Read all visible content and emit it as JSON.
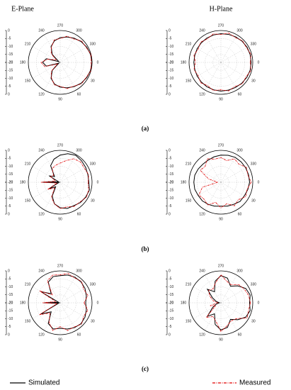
{
  "column_titles": [
    "E-Plane",
    "H-Plane"
  ],
  "captions": [
    "(a)",
    "(b)",
    "(c)"
  ],
  "legend": [
    {
      "name": "Simulated",
      "color": "#000000"
    },
    {
      "name": "Measured",
      "color": "#e00000"
    }
  ],
  "chart_data": [
    {
      "type": "polar",
      "rlim": [
        -20,
        0
      ],
      "rticks": [
        -20,
        -15,
        -10,
        -5,
        0
      ],
      "thetaticks": [
        0,
        30,
        60,
        90,
        120,
        150,
        180,
        210,
        240,
        270,
        300,
        330
      ],
      "theta": [
        0,
        15,
        30,
        45,
        60,
        75,
        90,
        105,
        120,
        135,
        150,
        165,
        180,
        195,
        210,
        225,
        240,
        255,
        270,
        285,
        300,
        315,
        330,
        345
      ],
      "series": [
        {
          "color": "#000000",
          "values": [
            0,
            -0.3,
            -0.8,
            -1.5,
            -2.5,
            -3.5,
            -4.5,
            -6,
            -8.5,
            -13,
            -19,
            -11,
            -9,
            -11,
            -19,
            -13,
            -8.5,
            -6,
            -4.5,
            -3.5,
            -2.5,
            -1.5,
            -0.8,
            -0.3
          ]
        },
        {
          "color": "#e00000",
          "values": [
            -0.5,
            0,
            -1.2,
            -1,
            -2.8,
            -3,
            -5,
            -5.5,
            -9,
            -12,
            -18,
            -10,
            -8,
            -12,
            -17,
            -12,
            -9,
            -5.5,
            -5,
            -3,
            -3,
            -1,
            -1.2,
            0
          ]
        }
      ]
    },
    {
      "type": "polar",
      "rlim": [
        -20,
        0
      ],
      "rticks": [
        -20,
        -15,
        -10,
        -5,
        0
      ],
      "thetaticks": [
        0,
        30,
        60,
        90,
        120,
        150,
        180,
        210,
        240,
        270,
        300,
        330
      ],
      "theta": [
        0,
        15,
        30,
        45,
        60,
        75,
        90,
        105,
        120,
        135,
        150,
        165,
        180,
        195,
        210,
        225,
        240,
        255,
        270,
        285,
        300,
        315,
        330,
        345
      ],
      "series": [
        {
          "color": "#000000",
          "values": [
            -1,
            -1,
            -1.2,
            -1.5,
            -1.8,
            -2,
            -2,
            -2.2,
            -2.4,
            -2.6,
            -2.8,
            -3,
            -3,
            -3,
            -2.8,
            -2.6,
            -2.4,
            -2.2,
            -2,
            -1.8,
            -1.5,
            -1.2,
            -1,
            -1
          ]
        },
        {
          "color": "#e00000",
          "values": [
            -1.5,
            -0.5,
            -1.8,
            -1,
            -2.5,
            -1.5,
            -2.8,
            -1.8,
            -3.2,
            -2,
            -3.5,
            -2.5,
            -4,
            -2.5,
            -3.5,
            -2,
            -3,
            -1.5,
            -2.5,
            -1,
            -2,
            -0.8,
            -1.5,
            -0.5
          ]
        }
      ]
    },
    {
      "type": "polar",
      "rlim": [
        -20,
        0
      ],
      "rticks": [
        -20,
        -15,
        -10,
        -5,
        0
      ],
      "thetaticks": [
        0,
        30,
        60,
        90,
        120,
        150,
        180,
        210,
        240,
        270,
        300,
        330
      ],
      "theta": [
        0,
        15,
        30,
        45,
        60,
        75,
        90,
        105,
        120,
        135,
        150,
        165,
        180,
        195,
        210,
        225,
        240,
        255,
        270,
        285,
        300,
        315,
        330,
        345
      ],
      "series": [
        {
          "color": "#000000",
          "values": [
            -2,
            -1,
            -1.5,
            -2,
            -3,
            -3,
            -4,
            -6,
            -10,
            -16,
            -12,
            -19,
            -9,
            -19,
            -12,
            -15,
            -8,
            -5,
            -3,
            -1.5,
            -0.5,
            -1,
            -1.5,
            -2
          ]
        },
        {
          "color": "#e00000",
          "values": [
            -2.5,
            -1.5,
            -1,
            -2.5,
            -2.5,
            -4,
            -3.5,
            -6,
            -9,
            -15,
            -11,
            -18,
            -8,
            -17,
            -13,
            -14,
            -10,
            -9,
            -8,
            -6,
            -3,
            -2,
            -2.5,
            -1.5
          ]
        }
      ]
    },
    {
      "type": "polar",
      "rlim": [
        -20,
        0
      ],
      "rticks": [
        -20,
        -15,
        -10,
        -5,
        0
      ],
      "thetaticks": [
        0,
        30,
        60,
        90,
        120,
        150,
        180,
        210,
        240,
        270,
        300,
        330
      ],
      "theta": [
        0,
        15,
        30,
        45,
        60,
        75,
        90,
        105,
        120,
        135,
        150,
        165,
        180,
        195,
        210,
        225,
        240,
        255,
        270,
        285,
        300,
        315,
        330,
        345
      ],
      "series": [
        {
          "color": "#000000",
          "values": [
            -2,
            -2.5,
            -3,
            -3,
            -4,
            -4.5,
            -5,
            -4.5,
            -4,
            -3.5,
            -3.5,
            -3,
            -3,
            -3,
            -3.5,
            -4,
            -4,
            -3.5,
            -3,
            -2.5,
            -2,
            -2,
            -2,
            -2
          ]
        },
        {
          "color": "#e00000",
          "values": [
            -1,
            -3,
            -2,
            -4.5,
            -3,
            -6,
            -4,
            -7,
            -3.5,
            -5,
            -4,
            -8,
            -18,
            -12,
            -5,
            -6,
            -3,
            -5,
            -4.5,
            -6,
            -3,
            -4,
            -1.5,
            -2.5
          ]
        }
      ]
    },
    {
      "type": "polar",
      "rlim": [
        -20,
        0
      ],
      "rticks": [
        -20,
        -15,
        -10,
        -5,
        0
      ],
      "thetaticks": [
        0,
        30,
        60,
        90,
        120,
        150,
        180,
        210,
        240,
        270,
        300,
        330
      ],
      "theta": [
        0,
        15,
        30,
        45,
        60,
        75,
        90,
        105,
        120,
        135,
        150,
        165,
        180,
        195,
        210,
        225,
        240,
        255,
        270,
        285,
        300,
        315,
        330,
        345
      ],
      "series": [
        {
          "color": "#000000",
          "values": [
            -4,
            -3,
            -2,
            -1.5,
            -2,
            -3,
            -4,
            -3,
            -5,
            -12,
            -6,
            -19,
            -10,
            -19,
            -6,
            -12,
            -5,
            -3,
            -3,
            -2,
            -1.5,
            -1.5,
            -2,
            -3
          ]
        },
        {
          "color": "#e00000",
          "values": [
            -5,
            -2,
            -3,
            -1,
            -2.5,
            -2,
            -5,
            -2,
            -6,
            -11,
            -5,
            -18,
            -9,
            -17,
            -5,
            -13,
            -4,
            -2,
            -2.5,
            -1,
            -2,
            -1,
            -3,
            -2
          ]
        }
      ]
    },
    {
      "type": "polar",
      "rlim": [
        -20,
        0
      ],
      "rticks": [
        -20,
        -15,
        -10,
        -5,
        0
      ],
      "thetaticks": [
        0,
        30,
        60,
        90,
        120,
        150,
        180,
        210,
        240,
        270,
        300,
        330
      ],
      "theta": [
        0,
        15,
        30,
        45,
        60,
        75,
        90,
        105,
        120,
        135,
        150,
        165,
        180,
        195,
        210,
        225,
        240,
        255,
        270,
        285,
        300,
        315,
        330,
        345
      ],
      "series": [
        {
          "color": "#000000",
          "values": [
            -2,
            -1,
            -2,
            -5,
            -8,
            -4,
            -3,
            -6,
            -12,
            -8,
            -14,
            -17,
            -19,
            -17,
            -14,
            -8,
            -12,
            -6,
            -3,
            -4,
            -8,
            -5,
            -2,
            -1
          ]
        },
        {
          "color": "#e00000",
          "values": [
            -1.5,
            -2,
            -1,
            -6,
            -7,
            -5,
            -2,
            -8,
            -10,
            -7,
            -16,
            -13,
            -18,
            -15,
            -12,
            -9,
            -10,
            -7,
            -2.5,
            -6,
            -7,
            -4,
            -3,
            -2
          ]
        }
      ]
    }
  ]
}
